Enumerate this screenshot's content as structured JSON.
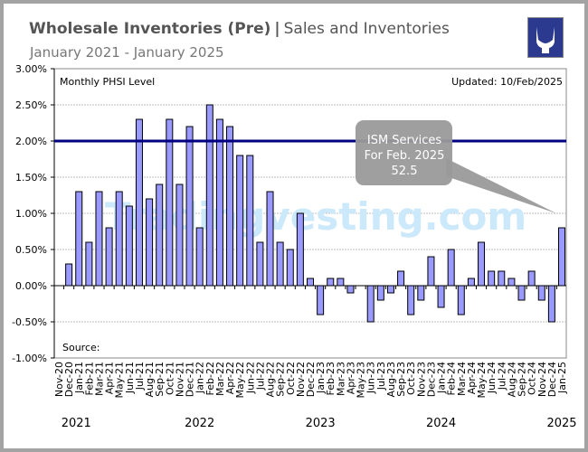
{
  "header": {
    "title_bold": "Wholesale Inventories (Pre)",
    "separator": "|",
    "title_rest": "Sales and Inventories",
    "subtitle": "January 2021 - January 2025"
  },
  "logo": {
    "name": "bull-logo-icon",
    "color": "#2b3a8e"
  },
  "chart_data": {
    "type": "bar",
    "title": "Monthly PHSI Level",
    "updated": "Updated: 10/Feb/2025",
    "source": "Source:",
    "xlabel": "",
    "ylabel": "",
    "ylim": [
      -1.0,
      3.0
    ],
    "yticks": [
      "3.00%",
      "2.50%",
      "2.00%",
      "1.50%",
      "1.00%",
      "0.50%",
      "0.00%",
      "-0.50%",
      "-1.00%"
    ],
    "ytick_values": [
      3.0,
      2.5,
      2.0,
      1.5,
      1.0,
      0.5,
      0.0,
      -0.5,
      -1.0
    ],
    "grid": true,
    "categories": [
      "Nov-20",
      "Dec-20",
      "Jan-21",
      "Feb-21",
      "Mar-21",
      "Apr-21",
      "May-21",
      "Jun-21",
      "Jul-21",
      "Aug-21",
      "Sep-21",
      "Oct-21",
      "Nov-21",
      "Dec-21",
      "Jan-22",
      "Feb-22",
      "Mar-22",
      "Apr-22",
      "May-22",
      "Jun-22",
      "Jul-22",
      "Aug-22",
      "Sep-22",
      "Oct-22",
      "Nov-22",
      "Dec-22",
      "Jan-23",
      "Feb-23",
      "Mar-23",
      "Apr-23",
      "May-23",
      "Jun-23",
      "Jul-23",
      "Aug-23",
      "Sep-23",
      "Oct-23",
      "Nov-23",
      "Dec-23",
      "Jan-24",
      "Feb-24",
      "Mar-24",
      "Apr-24",
      "May-24",
      "Jun-24",
      "Jul-24",
      "Aug-24",
      "Sep-24",
      "Oct-24",
      "Nov-24",
      "Dec-24",
      "Jan-25"
    ],
    "values": [
      null,
      0.3,
      1.3,
      0.6,
      1.3,
      0.8,
      1.3,
      1.1,
      2.3,
      1.2,
      1.4,
      2.3,
      1.4,
      2.2,
      0.8,
      2.5,
      2.3,
      2.2,
      1.8,
      1.8,
      0.6,
      1.3,
      0.6,
      0.5,
      1.0,
      0.1,
      -0.4,
      0.1,
      0.1,
      -0.1,
      0.0,
      -0.5,
      -0.2,
      -0.1,
      0.2,
      -0.4,
      -0.2,
      0.4,
      -0.3,
      0.5,
      -0.4,
      0.1,
      0.6,
      0.2,
      0.2,
      0.1,
      -0.2,
      0.2,
      -0.2,
      -0.5,
      0.8
    ],
    "reference_line": 2.0,
    "year_labels": [
      {
        "label": "2021",
        "category": "Jan-21"
      },
      {
        "label": "2022",
        "category": "Jan-22"
      },
      {
        "label": "2023",
        "category": "Jan-23"
      },
      {
        "label": "2024",
        "category": "Jan-24"
      },
      {
        "label": "2025",
        "category": "Jan-25"
      }
    ],
    "watermark": "Tradingvesting.com",
    "callout": {
      "line1": "ISM Services",
      "line2": "For Feb. 2025",
      "line3": "52.5"
    },
    "colors": {
      "bar": "#9999ff",
      "bar_edge": "#000000",
      "reference_line": "#000080",
      "grid": "#c0c0c0",
      "watermark": "#cbe9fb",
      "callout": "#9a9a9a"
    }
  }
}
